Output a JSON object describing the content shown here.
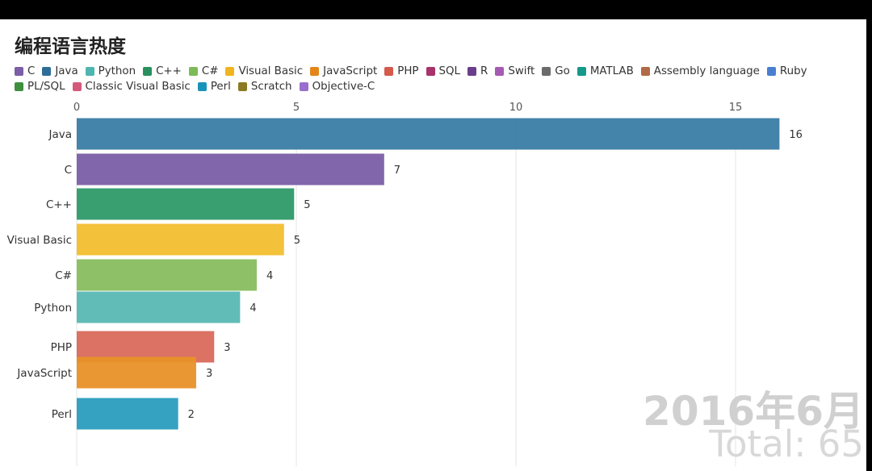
{
  "title": "编程语言热度",
  "legend": [
    {
      "name": "C",
      "color": "#7B5EA7"
    },
    {
      "name": "Java",
      "color": "#2E6E96"
    },
    {
      "name": "Python",
      "color": "#4EB5B0"
    },
    {
      "name": "C++",
      "color": "#2A8F5E"
    },
    {
      "name": "C#",
      "color": "#7DBB58"
    },
    {
      "name": "Visual Basic",
      "color": "#F0B51E"
    },
    {
      "name": "JavaScript",
      "color": "#E3861A"
    },
    {
      "name": "PHP",
      "color": "#D45A4C"
    },
    {
      "name": "SQL",
      "color": "#A8336A"
    },
    {
      "name": "R",
      "color": "#6A3E8A"
    },
    {
      "name": "Swift",
      "color": "#A55AB4"
    },
    {
      "name": "Go",
      "color": "#6B6B6B"
    },
    {
      "name": "MATLAB",
      "color": "#16998A"
    },
    {
      "name": "Assembly language",
      "color": "#B06A45"
    },
    {
      "name": "Ruby",
      "color": "#4A7FD0"
    },
    {
      "name": "PL/SQL",
      "color": "#3F8F3F"
    },
    {
      "name": "Classic Visual Basic",
      "color": "#D45A7C"
    },
    {
      "name": "Perl",
      "color": "#1A93B8"
    },
    {
      "name": "Scratch",
      "color": "#8A7A22"
    },
    {
      "name": "Objective-C",
      "color": "#9A6ECC"
    }
  ],
  "chart_data": {
    "type": "bar",
    "orientation": "horizontal",
    "title": "编程语言热度",
    "period": "2016年6月",
    "total_label": "Total: 65",
    "categories": [
      "Java",
      "C",
      "C++",
      "Visual Basic",
      "C#",
      "Python",
      "PHP",
      "JavaScript",
      "Perl"
    ],
    "values": [
      16,
      7,
      5,
      5,
      4,
      4,
      3,
      3,
      2
    ],
    "value_labels": [
      "16",
      "7",
      "5",
      "5",
      "4",
      "4",
      "3",
      "3",
      "2"
    ],
    "value_exact": [
      16,
      7,
      4.95,
      4.72,
      4.1,
      3.72,
      3.13,
      2.72,
      2.31
    ],
    "colors": [
      "#3A7CA5",
      "#7B5EA7",
      "#2E9A69",
      "#F2BE2F",
      "#88BD5F",
      "#58B8B4",
      "#D96A5C",
      "#E89128",
      "#2A9DBF"
    ],
    "x_axis_ticks": [
      "0",
      "5",
      "10",
      "15"
    ],
    "x_tick_values": [
      0,
      5,
      10,
      15
    ],
    "xlim": [
      0,
      16.4
    ],
    "xlabel": "",
    "ylabel": "",
    "grid": true,
    "legend_position": "top"
  }
}
